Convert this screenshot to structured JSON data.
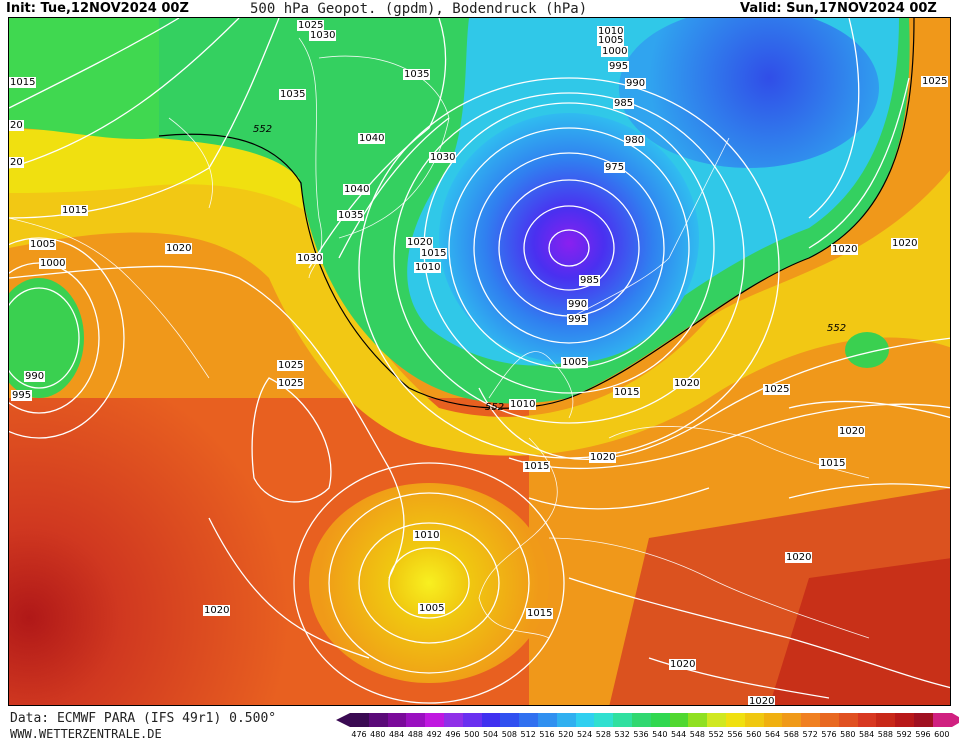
{
  "header": {
    "init": "Init: Tue,12NOV2024 00Z",
    "title": "500 hPa Geopot. (gpdm), Bodendruck (hPa)",
    "valid": "Valid: Sun,17NOV2024 00Z"
  },
  "footer": {
    "source": "Data: ECMWF PARA (IFS 49r1) 0.500°",
    "website": "WWW.WETTERZENTRALE.DE"
  },
  "colors": {
    "ocean_low": "#5a2fd6",
    "green_zone": "#2fd05a",
    "yellow_zone": "#f2e414",
    "orange_zone": "#f09a1a",
    "red_zone": "#d0381e",
    "deep_red": "#b01818",
    "isobar": "#ffffff"
  },
  "map": {
    "pressure_labels": [
      "1025",
      "1030",
      "1015",
      "1035",
      "1035",
      "1010",
      "1005",
      "1000",
      "995",
      "990",
      "985",
      "980",
      "975",
      "1040",
      "1030",
      "1040",
      "1035",
      "1020",
      "1015",
      "1010",
      "1025",
      "1020",
      "1005",
      "1000",
      "990",
      "995",
      "1020",
      "1030",
      "1025",
      "1025",
      "985",
      "990",
      "995",
      "1005",
      "1010",
      "1015",
      "1020",
      "1020",
      "1020",
      "1015",
      "1025",
      "1020",
      "1015",
      "1020",
      "1010",
      "1005",
      "1020",
      "1015",
      "1020",
      "1020",
      "1015",
      "1020",
      "1020",
      "20",
      "20",
      "1015"
    ],
    "geopot_labels": [
      "552",
      "552",
      "552",
      "552"
    ]
  },
  "color_scale": {
    "labels": [
      "476",
      "480",
      "484",
      "488",
      "492",
      "496",
      "500",
      "504",
      "508",
      "512",
      "516",
      "520",
      "524",
      "528",
      "532",
      "536",
      "540",
      "544",
      "548",
      "552",
      "556",
      "560",
      "564",
      "568",
      "572",
      "576",
      "580",
      "584",
      "588",
      "592",
      "596",
      "600"
    ],
    "colors": [
      "#3a0a52",
      "#5a0a78",
      "#7a0a9a",
      "#9a10c0",
      "#c018e0",
      "#9030e8",
      "#6a30f0",
      "#4030f0",
      "#3050f0",
      "#3070f0",
      "#3090f0",
      "#30b0f0",
      "#30d0f0",
      "#30e0d0",
      "#30e0a0",
      "#30d870",
      "#30d850",
      "#50d830",
      "#90e020",
      "#d0e820",
      "#f0e010",
      "#f0c810",
      "#f0b010",
      "#f09a18",
      "#f08020",
      "#e86820",
      "#e05020",
      "#d83820",
      "#c82818",
      "#b81818",
      "#a01020",
      "#d02080"
    ]
  }
}
